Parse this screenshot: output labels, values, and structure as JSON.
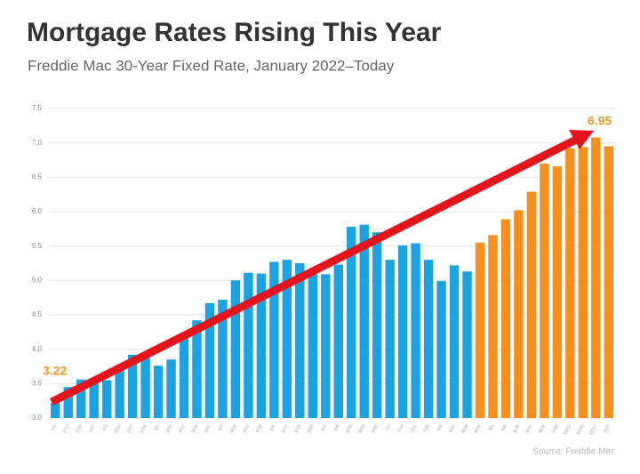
{
  "chart_data": {
    "type": "bar",
    "title": "Mortgage Rates Rising This Year",
    "subtitle": "Freddie Mac 30-Year Fixed Rate, January 2022–Today",
    "source": "Source: Freddie Mac",
    "categories": [
      "1/6",
      "1/13",
      "1/20",
      "1/27",
      "2/3",
      "2/10",
      "2/17",
      "2/24",
      "3/3",
      "3/10",
      "3/17",
      "3/24",
      "3/31",
      "4/7",
      "4/14",
      "4/21",
      "4/28",
      "5/5",
      "5/12",
      "5/19",
      "5/26",
      "6/2",
      "6/9",
      "6/16",
      "6/23",
      "6/30",
      "7/7",
      "7/14",
      "7/21",
      "7/28",
      "8/4",
      "8/11",
      "8/18",
      "8/25",
      "9/1",
      "9/8",
      "9/15",
      "9/22",
      "9/29",
      "10/6",
      "10/13",
      "10/20",
      "10/27",
      "11/3"
    ],
    "values": [
      3.22,
      3.45,
      3.56,
      3.55,
      3.55,
      3.69,
      3.92,
      3.89,
      3.76,
      3.85,
      4.16,
      4.42,
      4.67,
      4.72,
      5.0,
      5.11,
      5.1,
      5.27,
      5.3,
      5.25,
      5.1,
      5.09,
      5.23,
      5.78,
      5.81,
      5.7,
      5.3,
      5.51,
      5.54,
      5.3,
      4.99,
      5.22,
      5.13,
      5.55,
      5.66,
      5.89,
      6.02,
      6.29,
      6.7,
      6.66,
      6.92,
      6.94,
      7.08,
      6.95
    ],
    "colors": [
      "#1aa3e0",
      "#1aa3e0",
      "#1aa3e0",
      "#1aa3e0",
      "#1aa3e0",
      "#1aa3e0",
      "#1aa3e0",
      "#1aa3e0",
      "#1aa3e0",
      "#1aa3e0",
      "#1aa3e0",
      "#1aa3e0",
      "#1aa3e0",
      "#1aa3e0",
      "#1aa3e0",
      "#1aa3e0",
      "#1aa3e0",
      "#1aa3e0",
      "#1aa3e0",
      "#1aa3e0",
      "#1aa3e0",
      "#1aa3e0",
      "#1aa3e0",
      "#1aa3e0",
      "#1aa3e0",
      "#1aa3e0",
      "#1aa3e0",
      "#1aa3e0",
      "#1aa3e0",
      "#1aa3e0",
      "#1aa3e0",
      "#1aa3e0",
      "#1aa3e0",
      "#f5901e",
      "#f5901e",
      "#f5901e",
      "#f5901e",
      "#f5901e",
      "#f5901e",
      "#f5901e",
      "#f5901e",
      "#f5901e",
      "#f5901e",
      "#f5901e"
    ],
    "ylim": [
      3,
      7.5
    ],
    "yticks": [
      {
        "value": 3,
        "label": "3.0"
      },
      {
        "value": 3.5,
        "label": "3.5"
      },
      {
        "value": 4,
        "label": "4.0"
      },
      {
        "value": 4.5,
        "label": "4.5"
      },
      {
        "value": 5,
        "label": "5.0"
      },
      {
        "value": 5.5,
        "label": "5.5"
      },
      {
        "value": 6,
        "label": "6.0"
      },
      {
        "value": 6.5,
        "label": "6.5"
      },
      {
        "value": 7,
        "label": "7.0"
      },
      {
        "value": 7.5,
        "label": "7.5"
      }
    ],
    "grid": true
  }
}
